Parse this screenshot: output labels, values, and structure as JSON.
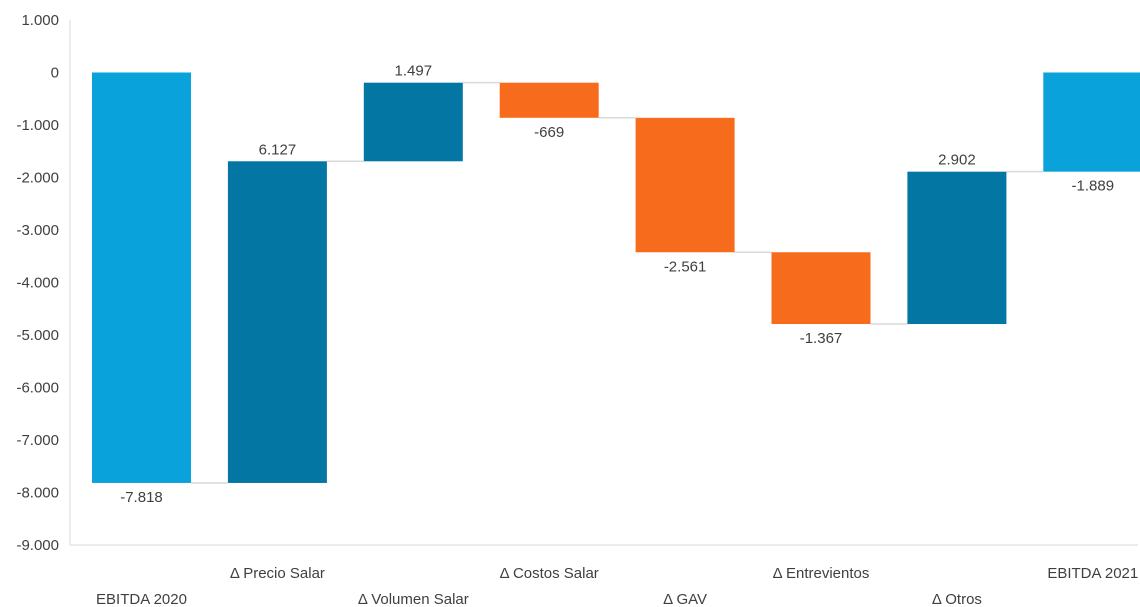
{
  "chart_data": {
    "type": "bar",
    "subtype": "waterfall",
    "title": "",
    "xlabel": "",
    "ylabel": "",
    "ylim": [
      -9000,
      1000
    ],
    "yticks": [
      1000,
      0,
      -1000,
      -2000,
      -3000,
      -4000,
      -5000,
      -6000,
      -7000,
      -8000,
      -9000
    ],
    "ytick_labels": [
      "1.000",
      "0",
      "-1.000",
      "-2.000",
      "-3.000",
      "-4.000",
      "-5.000",
      "-6.000",
      "-7.000",
      "-8.000",
      "-9.000"
    ],
    "grid": false,
    "legend": "none",
    "categories": [
      "EBITDA 2020",
      "Δ Precio Salar",
      "Δ Volumen Salar",
      "Δ Costos Salar",
      "Δ GAV",
      "Δ Entrevientos",
      "Δ Otros",
      "EBITDA 2021"
    ],
    "values": [
      -7818,
      6127,
      1497,
      -669,
      -2561,
      -1367,
      2902,
      -1889
    ],
    "data_labels": [
      "-7.818",
      "6.127",
      "1.497",
      "-669",
      "-2.561",
      "-1.367",
      "2.902",
      "-1.889"
    ],
    "kinds": [
      "total",
      "increase",
      "increase",
      "decrease",
      "decrease",
      "decrease",
      "increase",
      "total"
    ],
    "colors": {
      "total": "#0AA2DA",
      "increase": "#0376A3",
      "decrease": "#F76B1C",
      "connector": "#D9D9D9",
      "axis": "#D9D9D9",
      "text": "#404040"
    }
  }
}
